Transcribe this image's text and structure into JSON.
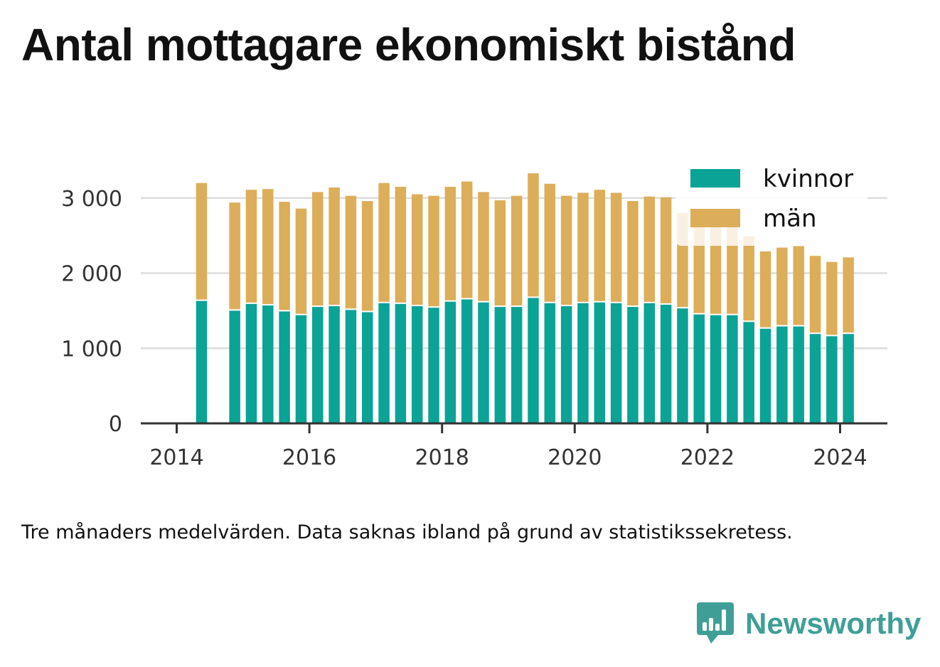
{
  "title": "Antal mottagare ekonomiskt bistånd",
  "note": "Tre månaders medelvärden. Data saknas ibland på grund av statistikssekretess.",
  "brand": "Newsworthy",
  "colors": {
    "kvinnor": "#0aa396",
    "man": "#dcae5a",
    "text": "#111111",
    "axis": "#333333",
    "grid": "#dddddd"
  },
  "chart_data": {
    "type": "bar",
    "stacked": true,
    "x_unit": "quarter",
    "x": [
      "2014-04",
      "2014-07",
      "2014-10",
      "2015-01",
      "2015-04",
      "2015-07",
      "2015-10",
      "2016-01",
      "2016-04",
      "2016-07",
      "2016-10",
      "2017-01",
      "2017-04",
      "2017-07",
      "2017-10",
      "2018-01",
      "2018-04",
      "2018-07",
      "2018-10",
      "2019-01",
      "2019-04",
      "2019-07",
      "2019-10",
      "2020-01",
      "2020-04",
      "2020-07",
      "2020-10",
      "2021-01",
      "2021-04",
      "2021-07",
      "2021-10",
      "2022-01",
      "2022-04",
      "2022-07",
      "2022-10",
      "2023-01",
      "2023-04",
      "2023-07",
      "2023-10",
      "2024-01"
    ],
    "series": [
      {
        "name": "kvinnor",
        "color": "#0aa396",
        "values": [
          1630,
          null,
          1500,
          1590,
          1570,
          1490,
          1440,
          1550,
          1560,
          1510,
          1480,
          1600,
          1590,
          1560,
          1540,
          1620,
          1650,
          1610,
          1550,
          1550,
          1670,
          1600,
          1560,
          1600,
          1610,
          1600,
          1550,
          1600,
          1580,
          1530,
          1450,
          1440,
          1440,
          1350,
          1260,
          1290,
          1290,
          1190,
          1160,
          1190
        ]
      },
      {
        "name": "män",
        "color": "#dcae5a",
        "values": [
          1570,
          null,
          1440,
          1520,
          1550,
          1460,
          1420,
          1530,
          1580,
          1520,
          1480,
          1600,
          1560,
          1490,
          1490,
          1530,
          1570,
          1470,
          1420,
          1480,
          1660,
          1590,
          1470,
          1470,
          1500,
          1470,
          1410,
          1420,
          1430,
          1270,
          1200,
          1200,
          1170,
          1140,
          1030,
          1050,
          1070,
          1040,
          990,
          1020
        ]
      }
    ],
    "yticks": [
      0,
      1000,
      2000,
      3000
    ],
    "ytick_labels": [
      "0",
      "1 000",
      "2 000",
      "3 000"
    ],
    "xtick_labels": [
      "2014",
      "2016",
      "2018",
      "2020",
      "2022",
      "2024"
    ],
    "ylim": [
      0,
      3300
    ],
    "grid": true,
    "legend": {
      "position": "top-right",
      "labels": [
        "kvinnor",
        "män"
      ]
    }
  }
}
